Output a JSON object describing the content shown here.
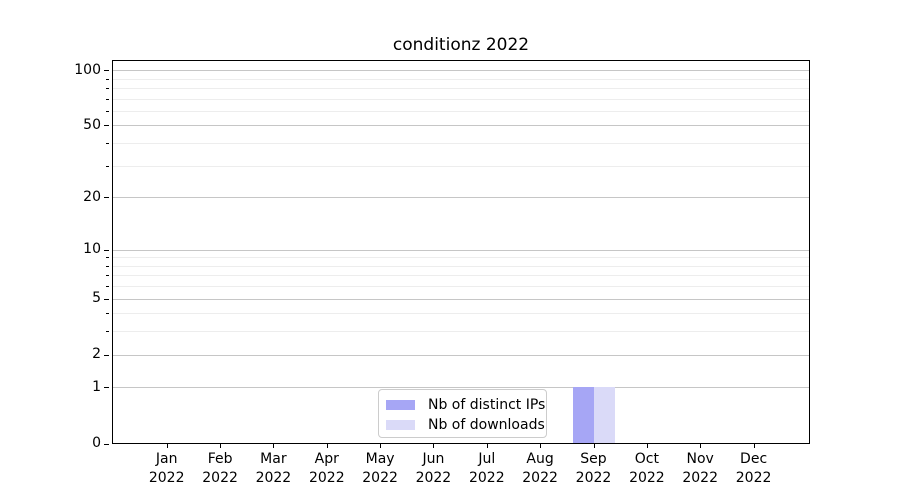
{
  "chart_data": {
    "type": "bar",
    "title": "conditionz 2022",
    "categories": [
      "Jan 2022",
      "Feb 2022",
      "Mar 2022",
      "Apr 2022",
      "May 2022",
      "Jun 2022",
      "Jul 2022",
      "Aug 2022",
      "Sep 2022",
      "Oct 2022",
      "Nov 2022",
      "Dec 2022"
    ],
    "series": [
      {
        "name": "Nb of distinct IPs",
        "color": "#a6a6f5",
        "values": [
          0,
          0,
          0,
          0,
          0,
          0,
          0,
          0,
          1,
          0,
          0,
          0
        ]
      },
      {
        "name": "Nb of downloads",
        "color": "#dadaf8",
        "values": [
          0,
          0,
          0,
          0,
          0,
          0,
          0,
          0,
          1,
          0,
          0,
          0
        ]
      }
    ],
    "xlabel": "",
    "ylabel": "",
    "yscale": "log1p",
    "ylim": [
      0,
      113
    ],
    "y_major_ticks": [
      0,
      1,
      2,
      5,
      10,
      20,
      50,
      100
    ],
    "y_minor_gridlines": [
      3,
      4,
      6,
      7,
      8,
      9,
      30,
      40,
      60,
      70,
      80,
      90
    ],
    "grid": "horizontal, major and minor",
    "legend_position": "lower center",
    "colors": {
      "axis": "#000000",
      "grid_major": "#c6c6c6",
      "grid_minor": "#ededed",
      "legend_border": "#cccccc",
      "background": "#ffffff"
    }
  }
}
